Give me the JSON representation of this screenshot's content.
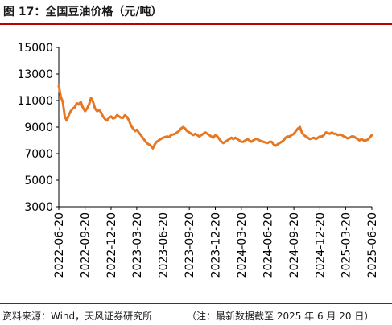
{
  "title": "图 17：全国豆油价格（元/吨）",
  "source": "资料来源：Wind，天风证券研究所",
  "note": "（注：最新数据截至 2025 年 6 月 20 日）",
  "colors": {
    "series": "#E87722",
    "accent": "#C00000",
    "axis": "#000000"
  },
  "chart_data": {
    "type": "line",
    "title": "",
    "xlabel": "",
    "ylabel": "",
    "ylim": [
      3000,
      15000
    ],
    "yticks": [
      3000,
      5000,
      7000,
      9000,
      11000,
      13000,
      15000
    ],
    "xticks": [
      "2022-06-20",
      "2022-09-20",
      "2022-12-20",
      "2023-03-20",
      "2023-06-20",
      "2023-09-20",
      "2023-12-20",
      "2024-03-20",
      "2024-06-20",
      "2024-09-20",
      "2024-12-20",
      "2025-03-20",
      "2025-06-20"
    ],
    "grid": false,
    "legend": "none",
    "series": [
      {
        "name": "",
        "color": "#E87722",
        "points": [
          [
            "2022-06-20",
            12100
          ],
          [
            "2022-06-27",
            11300
          ],
          [
            "2022-07-04",
            10900
          ],
          [
            "2022-07-11",
            9800
          ],
          [
            "2022-07-18",
            9500
          ],
          [
            "2022-07-25",
            9900
          ],
          [
            "2022-08-01",
            10200
          ],
          [
            "2022-08-08",
            10400
          ],
          [
            "2022-08-15",
            10500
          ],
          [
            "2022-08-22",
            10800
          ],
          [
            "2022-08-29",
            10700
          ],
          [
            "2022-09-05",
            10900
          ],
          [
            "2022-09-12",
            10500
          ],
          [
            "2022-09-20",
            10200
          ],
          [
            "2022-09-27",
            10400
          ],
          [
            "2022-10-04",
            10700
          ],
          [
            "2022-10-11",
            11200
          ],
          [
            "2022-10-18",
            10900
          ],
          [
            "2022-10-25",
            10400
          ],
          [
            "2022-11-01",
            10200
          ],
          [
            "2022-11-08",
            10300
          ],
          [
            "2022-11-15",
            10100
          ],
          [
            "2022-11-22",
            9800
          ],
          [
            "2022-11-29",
            9600
          ],
          [
            "2022-12-06",
            9500
          ],
          [
            "2022-12-13",
            9700
          ],
          [
            "2022-12-20",
            9800
          ],
          [
            "2022-12-27",
            9650
          ],
          [
            "2023-01-03",
            9700
          ],
          [
            "2023-01-10",
            9900
          ],
          [
            "2023-01-17",
            9800
          ],
          [
            "2023-01-24",
            9700
          ],
          [
            "2023-01-31",
            9700
          ],
          [
            "2023-02-07",
            9900
          ],
          [
            "2023-02-14",
            9750
          ],
          [
            "2023-02-21",
            9500
          ],
          [
            "2023-02-28",
            9100
          ],
          [
            "2023-03-07",
            8900
          ],
          [
            "2023-03-14",
            8700
          ],
          [
            "2023-03-20",
            8800
          ],
          [
            "2023-03-27",
            8600
          ],
          [
            "2023-04-03",
            8400
          ],
          [
            "2023-04-10",
            8200
          ],
          [
            "2023-04-17",
            8000
          ],
          [
            "2023-04-24",
            7800
          ],
          [
            "2023-05-01",
            7700
          ],
          [
            "2023-05-08",
            7600
          ],
          [
            "2023-05-15",
            7400
          ],
          [
            "2023-05-22",
            7700
          ],
          [
            "2023-05-29",
            7900
          ],
          [
            "2023-06-05",
            8000
          ],
          [
            "2023-06-12",
            8100
          ],
          [
            "2023-06-20",
            8200
          ],
          [
            "2023-06-27",
            8250
          ],
          [
            "2023-07-04",
            8300
          ],
          [
            "2023-07-11",
            8250
          ],
          [
            "2023-07-18",
            8400
          ],
          [
            "2023-07-25",
            8450
          ],
          [
            "2023-08-01",
            8500
          ],
          [
            "2023-08-08",
            8600
          ],
          [
            "2023-08-15",
            8700
          ],
          [
            "2023-08-22",
            8900
          ],
          [
            "2023-08-29",
            9000
          ],
          [
            "2023-09-05",
            8900
          ],
          [
            "2023-09-12",
            8700
          ],
          [
            "2023-09-20",
            8600
          ],
          [
            "2023-09-27",
            8500
          ],
          [
            "2023-10-04",
            8400
          ],
          [
            "2023-10-11",
            8500
          ],
          [
            "2023-10-18",
            8400
          ],
          [
            "2023-10-25",
            8300
          ],
          [
            "2023-11-01",
            8400
          ],
          [
            "2023-11-08",
            8500
          ],
          [
            "2023-11-15",
            8600
          ],
          [
            "2023-11-22",
            8500
          ],
          [
            "2023-11-29",
            8400
          ],
          [
            "2023-12-06",
            8300
          ],
          [
            "2023-12-13",
            8200
          ],
          [
            "2023-12-20",
            8400
          ],
          [
            "2023-12-27",
            8300
          ],
          [
            "2024-01-03",
            8100
          ],
          [
            "2024-01-10",
            7900
          ],
          [
            "2024-01-17",
            7800
          ],
          [
            "2024-01-24",
            7900
          ],
          [
            "2024-01-31",
            8000
          ],
          [
            "2024-02-07",
            8100
          ],
          [
            "2024-02-14",
            8200
          ],
          [
            "2024-02-21",
            8100
          ],
          [
            "2024-02-28",
            8200
          ],
          [
            "2024-03-06",
            8100
          ],
          [
            "2024-03-13",
            8000
          ],
          [
            "2024-03-20",
            7900
          ],
          [
            "2024-03-27",
            7900
          ],
          [
            "2024-04-03",
            8000
          ],
          [
            "2024-04-10",
            8100
          ],
          [
            "2024-04-17",
            8000
          ],
          [
            "2024-04-24",
            7900
          ],
          [
            "2024-05-01",
            8000
          ],
          [
            "2024-05-08",
            8100
          ],
          [
            "2024-05-15",
            8100
          ],
          [
            "2024-05-22",
            8000
          ],
          [
            "2024-05-29",
            7950
          ],
          [
            "2024-06-05",
            7900
          ],
          [
            "2024-06-12",
            7850
          ],
          [
            "2024-06-20",
            7800
          ],
          [
            "2024-06-27",
            7900
          ],
          [
            "2024-07-04",
            7900
          ],
          [
            "2024-07-11",
            7700
          ],
          [
            "2024-07-18",
            7600
          ],
          [
            "2024-07-25",
            7700
          ],
          [
            "2024-08-01",
            7800
          ],
          [
            "2024-08-08",
            7900
          ],
          [
            "2024-08-15",
            8000
          ],
          [
            "2024-08-22",
            8200
          ],
          [
            "2024-08-29",
            8300
          ],
          [
            "2024-09-05",
            8300
          ],
          [
            "2024-09-12",
            8400
          ],
          [
            "2024-09-20",
            8500
          ],
          [
            "2024-09-27",
            8700
          ],
          [
            "2024-10-04",
            8900
          ],
          [
            "2024-10-11",
            9000
          ],
          [
            "2024-10-18",
            8600
          ],
          [
            "2024-10-25",
            8400
          ],
          [
            "2024-11-01",
            8300
          ],
          [
            "2024-11-08",
            8200
          ],
          [
            "2024-11-15",
            8100
          ],
          [
            "2024-11-22",
            8150
          ],
          [
            "2024-11-29",
            8200
          ],
          [
            "2024-12-06",
            8100
          ],
          [
            "2024-12-13",
            8200
          ],
          [
            "2024-12-20",
            8300
          ],
          [
            "2024-12-27",
            8300
          ],
          [
            "2025-01-03",
            8400
          ],
          [
            "2025-01-10",
            8600
          ],
          [
            "2025-01-17",
            8550
          ],
          [
            "2025-01-24",
            8500
          ],
          [
            "2025-01-31",
            8600
          ],
          [
            "2025-02-07",
            8500
          ],
          [
            "2025-02-14",
            8500
          ],
          [
            "2025-02-21",
            8400
          ],
          [
            "2025-02-28",
            8450
          ],
          [
            "2025-03-07",
            8400
          ],
          [
            "2025-03-14",
            8300
          ],
          [
            "2025-03-20",
            8250
          ],
          [
            "2025-03-27",
            8150
          ],
          [
            "2025-04-03",
            8200
          ],
          [
            "2025-04-10",
            8300
          ],
          [
            "2025-04-17",
            8300
          ],
          [
            "2025-04-24",
            8200
          ],
          [
            "2025-05-01",
            8100
          ],
          [
            "2025-05-08",
            8000
          ],
          [
            "2025-05-15",
            8100
          ],
          [
            "2025-05-22",
            8000
          ],
          [
            "2025-05-29",
            8000
          ],
          [
            "2025-06-05",
            8050
          ],
          [
            "2025-06-12",
            8200
          ],
          [
            "2025-06-20",
            8400
          ]
        ]
      }
    ]
  }
}
